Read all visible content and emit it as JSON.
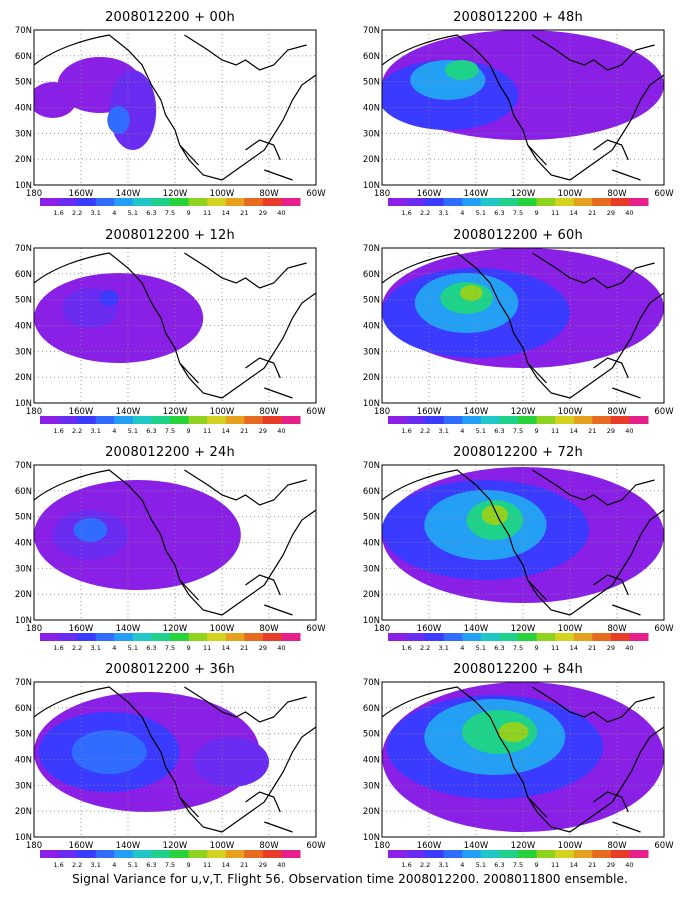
{
  "panels": [
    {
      "title": "2008012200 + 00h",
      "lead": "00h"
    },
    {
      "title": "2008012200 + 48h",
      "lead": "48h"
    },
    {
      "title": "2008012200 + 12h",
      "lead": "12h"
    },
    {
      "title": "2008012200 + 60h",
      "lead": "60h"
    },
    {
      "title": "2008012200 + 24h",
      "lead": "24h"
    },
    {
      "title": "2008012200 + 72h",
      "lead": "72h"
    },
    {
      "title": "2008012200 + 36h",
      "lead": "36h"
    },
    {
      "title": "2008012200 + 84h",
      "lead": "84h"
    }
  ],
  "axes": {
    "lat_labels": [
      "70N",
      "60N",
      "50N",
      "40N",
      "30N",
      "20N",
      "10N"
    ],
    "lon_labels": [
      "180",
      "160W",
      "140W",
      "120W",
      "100W",
      "80W",
      "60W"
    ]
  },
  "colorbar": {
    "labels": [
      "1.6",
      "2.2",
      "3.1",
      "4",
      "5.1",
      "6.3",
      "7.5",
      "9",
      "11",
      "14",
      "21",
      "29",
      "40"
    ],
    "colors": [
      "#8a1fe6",
      "#6a2cf0",
      "#3b3bff",
      "#2f6cff",
      "#23a0f5",
      "#1fc7c7",
      "#1fd28a",
      "#27d23a",
      "#8fd21f",
      "#d2d21f",
      "#e6a01f",
      "#e66a1f",
      "#e63c28",
      "#e61f8a"
    ]
  },
  "footer": "Signal Variance for u,v,T. Flight 56. Observation time 2008012200. 2008011800 ensemble."
}
